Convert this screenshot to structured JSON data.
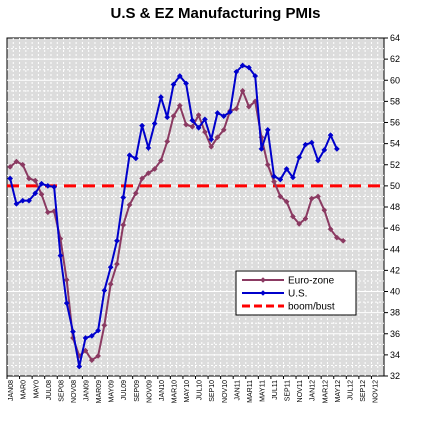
{
  "chart_data": {
    "type": "line",
    "title": "U.S & EZ Manufacturing PMIs",
    "xlabel": "",
    "ylabel": "",
    "ylim": [
      32,
      64
    ],
    "yticks": [
      32,
      34,
      36,
      38,
      40,
      42,
      44,
      46,
      48,
      50,
      52,
      54,
      56,
      58,
      60,
      62,
      64
    ],
    "y_axis_side": "right",
    "grid": true,
    "legend_position": "lower-right",
    "x_tick_labels": [
      "JAN08",
      "MAR08",
      "MAY08",
      "JUL08",
      "SEP08",
      "NOV08",
      "JAN09",
      "MAR09",
      "MAY09",
      "JUL09",
      "SEP09",
      "NOV09",
      "JAN10",
      "MAR10",
      "MAY10",
      "JUL10",
      "SEP10",
      "NOV10",
      "JAN11",
      "MAR11",
      "MAY11",
      "JUL11",
      "SEP11",
      "NOV11",
      "JAN12",
      "MAR12",
      "MAY12",
      "JUL12",
      "SEP12",
      "NOV12"
    ],
    "x_tick_display": [
      "JAN08",
      "MAR0",
      "MAY0",
      "JUL08",
      "SEP08",
      "NOV08",
      "JAN09",
      "MAR09",
      "MAY09",
      "JUL09",
      "SEP09",
      "NOV09",
      "JAN10",
      "MAR10",
      "MAY10",
      "JUL10",
      "SEP10",
      "NOV10",
      "JAN11",
      "MAR11",
      "MAY11",
      "JUL11",
      "SEP11",
      "NOV11",
      "JAN12",
      "MAR12",
      "MAY12",
      "JUL12",
      "SEP12",
      "NOV12"
    ],
    "months": [
      "Jan08",
      "Feb08",
      "Mar08",
      "Apr08",
      "May08",
      "Jun08",
      "Jul08",
      "Aug08",
      "Sep08",
      "Oct08",
      "Nov08",
      "Dec08",
      "Jan09",
      "Feb09",
      "Mar09",
      "Apr09",
      "May09",
      "Jun09",
      "Jul09",
      "Aug09",
      "Sep09",
      "Oct09",
      "Nov09",
      "Dec09",
      "Jan10",
      "Feb10",
      "Mar10",
      "Apr10",
      "May10",
      "Jun10",
      "Jul10",
      "Aug10",
      "Sep10",
      "Oct10",
      "Nov10",
      "Dec10",
      "Jan11",
      "Feb11",
      "Mar11",
      "Apr11",
      "May11",
      "Jun11",
      "Jul11",
      "Aug11",
      "Sep11",
      "Oct11",
      "Nov11",
      "Dec11",
      "Jan12",
      "Feb12",
      "Mar12",
      "Apr12",
      "May12",
      "Jun12",
      "Jul12",
      "Aug12",
      "Sep12",
      "Oct12",
      "Nov12",
      "Dec12"
    ],
    "series": [
      {
        "name": "Euro-zone",
        "color": "#8b3a62",
        "marker": "diamond",
        "values": [
          51.8,
          52.3,
          52.0,
          50.7,
          50.5,
          49.2,
          47.5,
          47.6,
          45.0,
          41.1,
          35.6,
          33.9,
          34.4,
          33.5,
          33.9,
          36.8,
          40.7,
          42.6,
          46.3,
          48.2,
          49.3,
          50.7,
          51.2,
          51.6,
          52.4,
          54.2,
          56.6,
          57.6,
          55.8,
          55.6,
          56.7,
          55.1,
          53.7,
          54.6,
          55.3,
          57.1,
          57.3,
          59.0,
          57.5,
          58.0,
          54.6,
          52.0,
          50.4,
          49.0,
          48.5,
          47.1,
          46.4,
          46.9,
          48.8,
          49.0,
          47.7,
          45.9,
          45.1,
          44.8
        ]
      },
      {
        "name": "U.S.",
        "color": "#0000cc",
        "marker": "diamond",
        "values": [
          50.7,
          48.3,
          48.6,
          48.6,
          49.3,
          50.2,
          50.0,
          49.9,
          43.4,
          38.9,
          36.2,
          32.9,
          35.6,
          35.8,
          36.3,
          40.1,
          42.3,
          44.8,
          48.9,
          52.9,
          52.6,
          55.7,
          53.6,
          55.9,
          58.4,
          56.5,
          59.6,
          60.4,
          59.7,
          56.2,
          55.5,
          56.3,
          54.4,
          56.9,
          56.6,
          57.0,
          60.8,
          61.4,
          61.2,
          60.4,
          53.5,
          55.3,
          50.9,
          50.6,
          51.6,
          50.8,
          52.7,
          53.9,
          54.1,
          52.4,
          53.4,
          54.8,
          53.5
        ]
      }
    ],
    "reference_lines": [
      {
        "name": "boom/bust",
        "value": 50,
        "color": "#ff0000",
        "style": "dashed"
      }
    ]
  }
}
